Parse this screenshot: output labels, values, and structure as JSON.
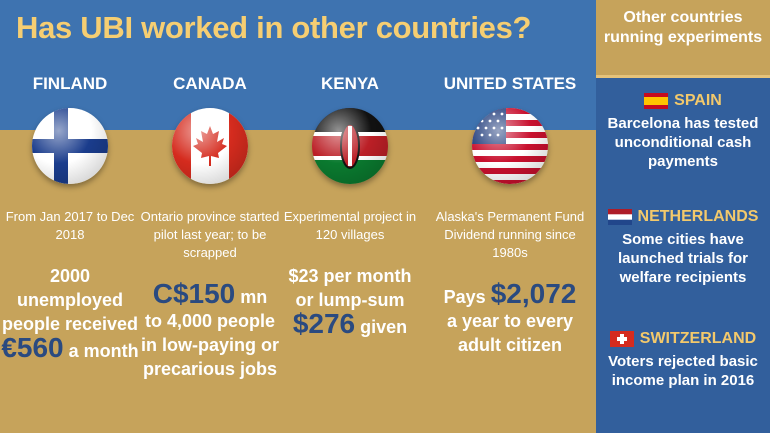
{
  "title": "Has UBI worked in other countries?",
  "countries": [
    {
      "name": "FINLAND",
      "flag_icon": "finland-flag-icon",
      "desc": "From Jan 2017 to Dec 2018",
      "fact_a": "2000 unemployed people received",
      "fact_hl": "€560",
      "fact_b": "a month"
    },
    {
      "name": "CANADA",
      "flag_icon": "canada-flag-icon",
      "desc": "Ontario province started pilot last year; to be scrapped",
      "fact_hl": "C$150",
      "fact_a": "mn",
      "fact_b": "to 4,000 people in low-paying or precarious jobs"
    },
    {
      "name": "KENYA",
      "flag_icon": "kenya-flag-icon",
      "desc": "Experimental project in 120 villages",
      "fact_a": "$23 per month or lump-sum",
      "fact_hl": "$276",
      "fact_b": "given"
    },
    {
      "name": "UNITED STATES",
      "flag_icon": "usa-flag-icon",
      "desc": "Alaska's Permanent Fund Dividend running since 1980s",
      "fact_a": "Pays",
      "fact_hl": "$2,072",
      "fact_b": "a year to every adult citizen"
    }
  ],
  "sidebar": {
    "heading": "Other countries running experiments",
    "entries": [
      {
        "country": "SPAIN",
        "icon": "spain-flag-icon",
        "text": "Barcelona has tested unconditional cash payments"
      },
      {
        "country": "NETHERLANDS",
        "icon": "netherlands-flag-icon",
        "text": "Some cities have launched trials for welfare recipients"
      },
      {
        "country": "SWITZERLAND",
        "icon": "switzerland-flag-icon",
        "text": "Voters rejected basic income plan in 2016"
      }
    ]
  },
  "colors": {
    "blue_band": "#3e73b0",
    "gold_band": "#c6a35b",
    "highlight": "#2a4a80",
    "sidebar_blue": "#325f9c",
    "title_gold": "#f6ce72"
  }
}
